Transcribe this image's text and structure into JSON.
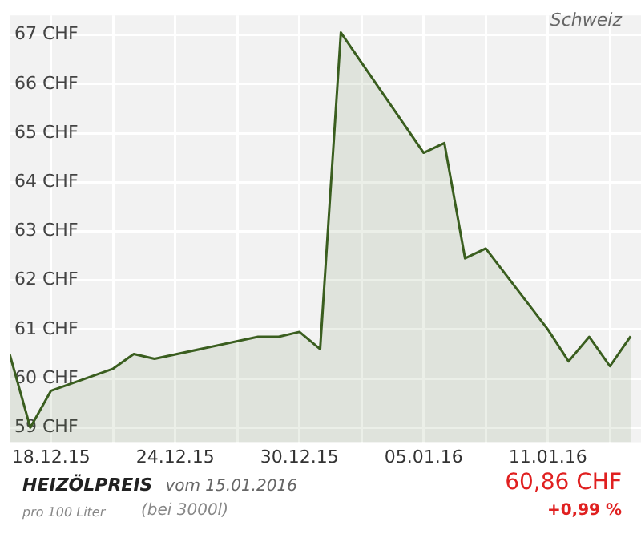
{
  "chart_data": {
    "type": "area",
    "x": [
      "2015-12-16",
      "2015-12-17",
      "2015-12-18",
      "2015-12-21",
      "2015-12-22",
      "2015-12-23",
      "2015-12-28",
      "2015-12-29",
      "2015-12-30",
      "2015-12-31",
      "2016-01-01",
      "2016-01-05",
      "2016-01-06",
      "2016-01-07",
      "2016-01-08",
      "2016-01-11",
      "2016-01-12",
      "2016-01-13",
      "2016-01-14",
      "2016-01-15"
    ],
    "series": [
      {
        "color": "#3a5e1f",
        "values": [
          60.5,
          59.0,
          59.75,
          60.2,
          60.5,
          60.4,
          60.85,
          60.85,
          60.95,
          60.6,
          67.05,
          64.6,
          64.8,
          62.45,
          62.65,
          61.0,
          60.35,
          60.85,
          60.25,
          60.86
        ]
      }
    ],
    "xlim": [
      "2015-12-16",
      "2016-01-15T12:00"
    ],
    "xticks": [
      {
        "value": "2015-12-18",
        "label": "18.12.15"
      },
      {
        "value": "2015-12-21",
        "label": null
      },
      {
        "value": "2015-12-24",
        "label": "24.12.15"
      },
      {
        "value": "2015-12-27",
        "label": null
      },
      {
        "value": "2015-12-30",
        "label": "30.12.15"
      },
      {
        "value": "2016-01-02",
        "label": null
      },
      {
        "value": "2016-01-05",
        "label": "05.01.16"
      },
      {
        "value": "2016-01-08",
        "label": null
      },
      {
        "value": "2016-01-11",
        "label": "11.01.16"
      },
      {
        "value": "2016-01-14",
        "label": null
      }
    ],
    "ylim": [
      58.7,
      67.4
    ],
    "yticks": [
      {
        "value": 59,
        "label": "59 CHF"
      },
      {
        "value": 60,
        "label": "60 CHF"
      },
      {
        "value": 61,
        "label": "61 CHF"
      },
      {
        "value": 62,
        "label": "62 CHF"
      },
      {
        "value": 63,
        "label": "63 CHF"
      },
      {
        "value": 64,
        "label": "64 CHF"
      },
      {
        "value": 65,
        "label": "65 CHF"
      },
      {
        "value": 66,
        "label": "66 CHF"
      },
      {
        "value": 67,
        "label": "67 CHF"
      }
    ],
    "grid": true,
    "marker": "none",
    "annotations": [
      "Schweiz",
      "HEIZÖLPREIS",
      "vom 15.01.2016",
      "pro 100 Liter",
      "(bei 3000l)",
      "60,86 CHF",
      "+0,99 %"
    ]
  }
}
